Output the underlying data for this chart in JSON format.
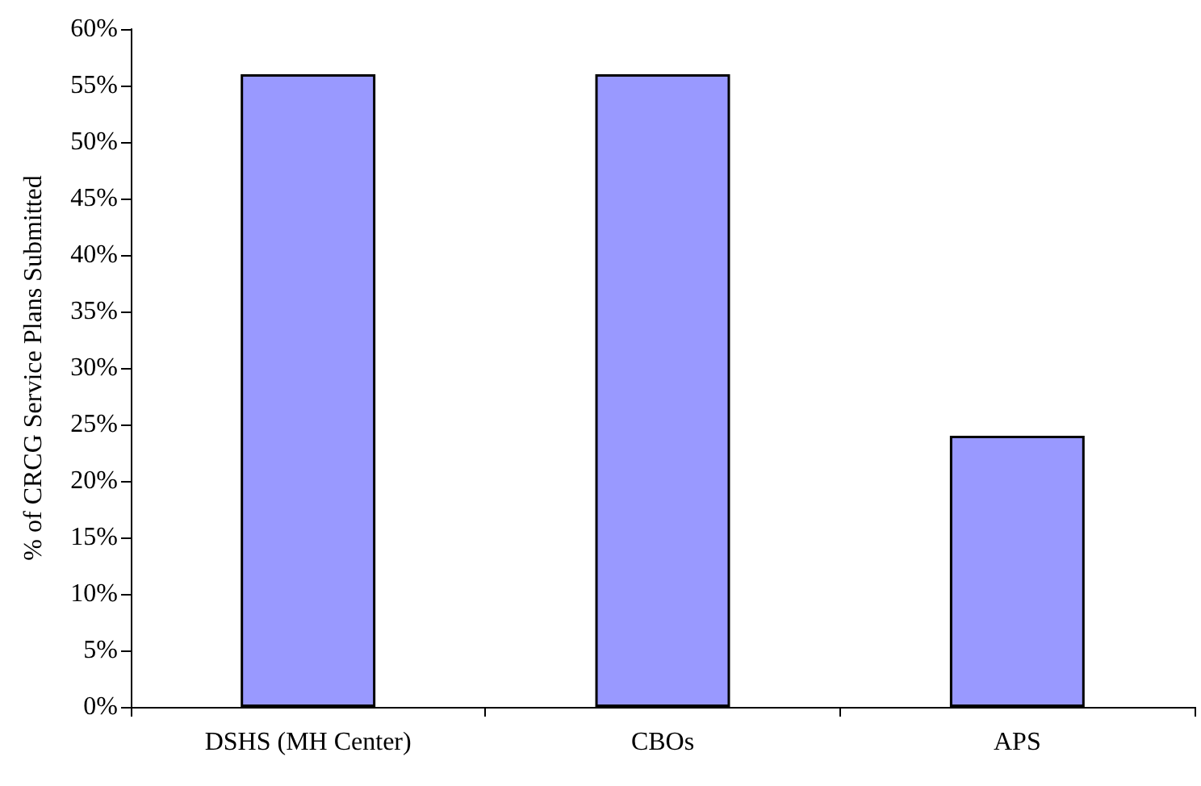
{
  "chart_data": {
    "type": "bar",
    "ylabel": "% of CRCG Service Plans Submitted",
    "categories": [
      "DSHS (MH Center)",
      "CBOs",
      "APS"
    ],
    "values": [
      56,
      56,
      24
    ],
    "color": "#9999ff",
    "ylim": [
      0,
      60
    ],
    "yticks": [
      {
        "value": 0,
        "label": "0%"
      },
      {
        "value": 5,
        "label": "5%"
      },
      {
        "value": 10,
        "label": "10%"
      },
      {
        "value": 15,
        "label": "15%"
      },
      {
        "value": 20,
        "label": "20%"
      },
      {
        "value": 25,
        "label": "25%"
      },
      {
        "value": 30,
        "label": "30%"
      },
      {
        "value": 35,
        "label": "35%"
      },
      {
        "value": 40,
        "label": "40%"
      },
      {
        "value": 45,
        "label": "45%"
      },
      {
        "value": 50,
        "label": "50%"
      },
      {
        "value": 55,
        "label": "55%"
      },
      {
        "value": 60,
        "label": "60%"
      }
    ],
    "grid": false
  }
}
